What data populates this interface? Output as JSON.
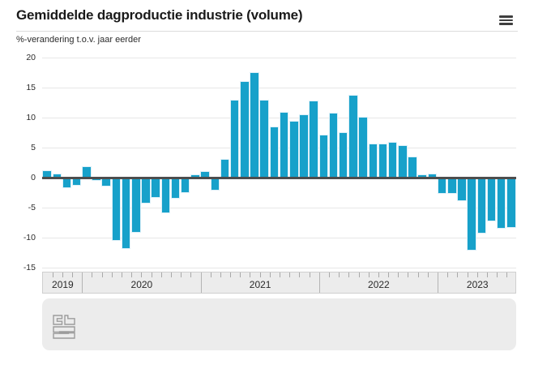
{
  "header": {
    "menu_icon": "hamburger-menu"
  },
  "chart_data": {
    "type": "bar",
    "title": "Gemiddelde dagproductie industrie (volume)",
    "subtitle": "%-verandering t.o.v. jaar eerder",
    "unit": "%",
    "grid": true,
    "ylim": [
      -15,
      20
    ],
    "y_ticks": [
      20,
      15,
      10,
      5,
      0,
      -5,
      -10,
      -15
    ],
    "year_groups": [
      {
        "label": "2019",
        "months": 4
      },
      {
        "label": "2020",
        "months": 12
      },
      {
        "label": "2021",
        "months": 12
      },
      {
        "label": "2022",
        "months": 12
      },
      {
        "label": "2023",
        "months": 8
      }
    ],
    "categories": [
      "2019-09",
      "2019-10",
      "2019-11",
      "2019-12",
      "2020-01",
      "2020-02",
      "2020-03",
      "2020-04",
      "2020-05",
      "2020-06",
      "2020-07",
      "2020-08",
      "2020-09",
      "2020-10",
      "2020-11",
      "2020-12",
      "2021-01",
      "2021-02",
      "2021-03",
      "2021-04",
      "2021-05",
      "2021-06",
      "2021-07",
      "2021-08",
      "2021-09",
      "2021-10",
      "2021-11",
      "2021-12",
      "2022-01",
      "2022-02",
      "2022-03",
      "2022-04",
      "2022-05",
      "2022-06",
      "2022-07",
      "2022-08",
      "2022-09",
      "2022-10",
      "2022-11",
      "2022-12",
      "2023-01",
      "2023-02",
      "2023-03",
      "2023-04",
      "2023-05",
      "2023-06",
      "2023-07",
      "2023-08"
    ],
    "values": [
      1.1,
      0.5,
      -1.6,
      -1.2,
      1.7,
      -0.4,
      -1.4,
      -10.4,
      -11.8,
      -9.0,
      -4.2,
      -3.2,
      -5.8,
      -3.4,
      -2.4,
      0.4,
      1.0,
      -2.0,
      3.0,
      12.8,
      16.0,
      17.5,
      12.9,
      8.4,
      10.8,
      9.3,
      10.4,
      12.7,
      7.0,
      10.7,
      7.5,
      13.6,
      10.0,
      5.6,
      5.6,
      5.8,
      5.3,
      3.4,
      0.4,
      0.6,
      -2.6,
      -2.6,
      -3.8,
      -12.0,
      -9.2,
      -7.1,
      -8.4,
      -8.2
    ],
    "legend": "none",
    "colors": {
      "bar": "#17a1ca",
      "zero_line": "#4d4d4d",
      "grid": "#e7e7e7",
      "axis_strip_bg": "#ececec",
      "footer_bg": "#ececec"
    }
  },
  "footer": {
    "logo": "cbs-logo"
  }
}
